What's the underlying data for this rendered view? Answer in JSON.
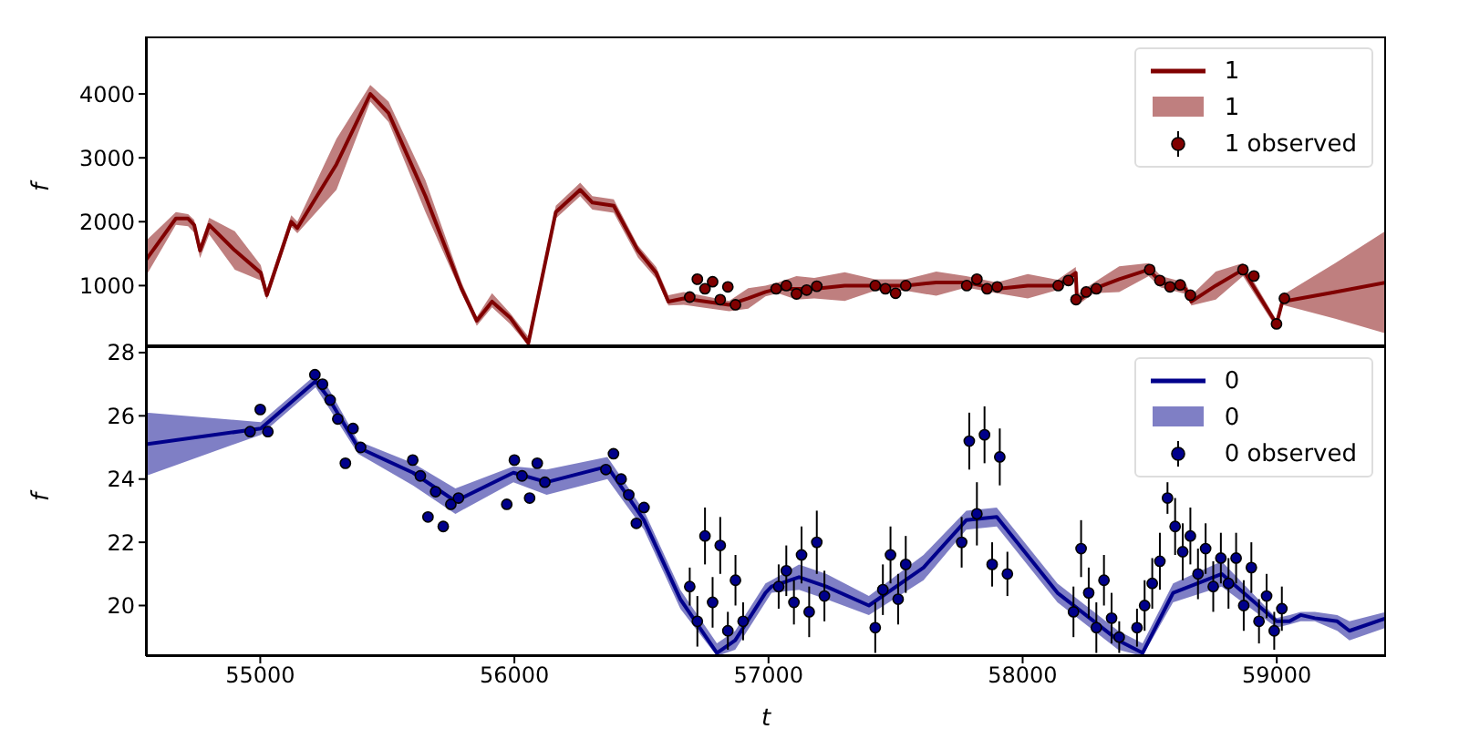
{
  "chart_data": [
    {
      "type": "line",
      "ylabel": "f",
      "xlim": [
        54550,
        59430
      ],
      "xticks": [
        55000,
        56000,
        57000,
        58000,
        59000
      ],
      "ylim": [
        50,
        4900
      ],
      "yticks": [
        1000,
        2000,
        3000,
        4000
      ],
      "tick_labels": "y",
      "legend": "top right",
      "series": [
        {
          "name": "1",
          "color": "#800000",
          "x": [
            54550,
            54668,
            54716,
            54740,
            54763,
            54799,
            54900,
            55002,
            55026,
            55122,
            55146,
            55300,
            55433,
            55505,
            55650,
            55792,
            55852,
            55912,
            55983,
            56055,
            56163,
            56259,
            56307,
            56391,
            56486,
            56558,
            56606,
            56666,
            56845,
            56920,
            56988,
            57037,
            57110,
            57180,
            57300,
            57419,
            57539,
            57660,
            57778,
            57898,
            58020,
            58137,
            58209,
            58214,
            58281,
            58380,
            58496,
            58544,
            58640,
            58664,
            58760,
            58867,
            58999,
            59022,
            59230,
            59430
          ],
          "values": [
            1400,
            2050,
            2050,
            1950,
            1550,
            1950,
            1550,
            1200,
            850,
            2000,
            1900,
            2900,
            4000,
            3700,
            2400,
            950,
            450,
            750,
            500,
            100,
            2150,
            2500,
            2300,
            2250,
            1550,
            1200,
            750,
            800,
            700,
            800,
            900,
            950,
            950,
            950,
            1000,
            1000,
            1000,
            1050,
            1050,
            950,
            1000,
            1000,
            1200,
            750,
            950,
            1100,
            1250,
            1050,
            950,
            750,
            1000,
            1250,
            400,
            750,
            900,
            1050
          ],
          "lower": [
            1150,
            1950,
            1930,
            1830,
            1430,
            1800,
            1250,
            1080,
            780,
            1920,
            1820,
            2500,
            3880,
            3560,
            2150,
            880,
            370,
            660,
            400,
            60,
            2050,
            2400,
            2190,
            2140,
            1440,
            1110,
            690,
            700,
            600,
            640,
            830,
            880,
            780,
            800,
            760,
            920,
            920,
            840,
            970,
            880,
            800,
            930,
            1110,
            690,
            880,
            900,
            1150,
            970,
            870,
            690,
            780,
            1150,
            330,
            700,
            480,
            250
          ],
          "upper": [
            1700,
            2150,
            2120,
            2030,
            1630,
            2060,
            1850,
            1320,
            950,
            2100,
            2000,
            3300,
            4140,
            3880,
            2650,
            1050,
            510,
            880,
            570,
            200,
            2250,
            2610,
            2400,
            2350,
            1630,
            1290,
            850,
            900,
            760,
            960,
            1000,
            1050,
            1150,
            1120,
            1210,
            1100,
            1100,
            1220,
            1150,
            1050,
            1180,
            1090,
            1290,
            860,
            1050,
            1300,
            1350,
            1150,
            1050,
            850,
            1220,
            1350,
            460,
            850,
            1350,
            1860
          ]
        },
        {
          "name": "1 observed",
          "type": "scatter",
          "color": "#800000",
          "marker": "circle",
          "x": [
            56690,
            56720,
            56750,
            56780,
            56810,
            56840,
            56870,
            57030,
            57070,
            57110,
            57150,
            57190,
            57420,
            57460,
            57500,
            57540,
            57780,
            57820,
            57860,
            57900,
            58140,
            58180,
            58210,
            58250,
            58290,
            58500,
            58540,
            58580,
            58620,
            58660,
            58867,
            58910,
            58999,
            59030
          ],
          "values": [
            820,
            1100,
            950,
            1060,
            780,
            980,
            700,
            950,
            1000,
            870,
            930,
            990,
            1000,
            950,
            880,
            1000,
            1000,
            1100,
            950,
            980,
            1000,
            1080,
            780,
            900,
            950,
            1250,
            1080,
            980,
            1010,
            850,
            1250,
            1150,
            400,
            800
          ]
        }
      ]
    },
    {
      "type": "line",
      "xlabel": "t",
      "ylabel": "f",
      "xlim": [
        54550,
        59430
      ],
      "xticks": [
        55000,
        56000,
        57000,
        58000,
        59000
      ],
      "ylim": [
        18.4,
        28.2
      ],
      "yticks": [
        20,
        22,
        24,
        26,
        28
      ],
      "legend": "top right",
      "series": [
        {
          "name": "0",
          "color": "#00008b",
          "x": [
            54550,
            55002,
            55218,
            55266,
            55385,
            55601,
            55768,
            55996,
            56127,
            56366,
            56510,
            56653,
            56797,
            56869,
            56988,
            57012,
            57120,
            57227,
            57395,
            57610,
            57778,
            57898,
            58137,
            58376,
            58472,
            58592,
            58783,
            58999,
            59050,
            59094,
            59150,
            59238,
            59286,
            59430
          ],
          "values": [
            25.1,
            25.6,
            27.1,
            26.6,
            25.0,
            24.2,
            23.3,
            24.2,
            23.9,
            24.4,
            22.7,
            20.2,
            18.5,
            18.9,
            20.4,
            20.6,
            20.9,
            20.6,
            20.0,
            21.2,
            22.7,
            22.8,
            20.4,
            18.9,
            18.5,
            20.4,
            21.0,
            19.5,
            19.5,
            19.7,
            19.6,
            19.5,
            19.2,
            19.6
          ],
          "lower": [
            24.1,
            25.4,
            26.9,
            26.3,
            24.8,
            23.8,
            22.9,
            23.9,
            23.5,
            24.0,
            22.4,
            19.9,
            18.4,
            18.6,
            20.1,
            20.4,
            20.5,
            20.2,
            19.7,
            20.8,
            22.4,
            22.5,
            20.1,
            18.6,
            18.4,
            20.1,
            20.6,
            19.3,
            19.4,
            19.5,
            19.5,
            19.2,
            18.9,
            19.3
          ],
          "upper": [
            26.1,
            25.8,
            27.3,
            26.9,
            25.2,
            24.5,
            23.7,
            24.4,
            24.3,
            24.7,
            23.0,
            20.5,
            18.8,
            19.2,
            20.7,
            20.8,
            21.3,
            21.0,
            20.3,
            21.6,
            23.0,
            23.1,
            20.7,
            19.2,
            18.8,
            20.7,
            21.4,
            19.6,
            19.7,
            19.8,
            19.8,
            19.7,
            19.5,
            19.8
          ]
        },
        {
          "name": "0 observed",
          "type": "scatter",
          "color": "#00008b",
          "marker": "circle",
          "x": [
            54960,
            55000,
            55030,
            55215,
            55245,
            55275,
            55305,
            55335,
            55365,
            55395,
            55600,
            55630,
            55660,
            55690,
            55720,
            55750,
            55780,
            55970,
            56000,
            56030,
            56060,
            56090,
            56120,
            56360,
            56390,
            56420,
            56450,
            56480,
            56510,
            56690,
            56720,
            56750,
            56780,
            56810,
            56840,
            56870,
            56900,
            57040,
            57070,
            57100,
            57130,
            57160,
            57190,
            57220,
            57420,
            57450,
            57480,
            57510,
            57540,
            57760,
            57790,
            57820,
            57850,
            57880,
            57910,
            57940,
            58200,
            58230,
            58260,
            58290,
            58320,
            58350,
            58380,
            58450,
            58480,
            58510,
            58540,
            58570,
            58600,
            58630,
            58660,
            58690,
            58720,
            58750,
            58780,
            58810,
            58840,
            58870,
            58900,
            58930,
            58960,
            58990,
            59020
          ],
          "values": [
            25.5,
            26.2,
            25.5,
            27.3,
            27.0,
            26.5,
            25.9,
            24.5,
            25.6,
            25.0,
            24.6,
            24.1,
            22.8,
            23.6,
            22.5,
            23.2,
            23.4,
            23.2,
            24.6,
            24.1,
            23.4,
            24.5,
            23.9,
            24.3,
            24.8,
            24.0,
            23.5,
            22.6,
            23.1,
            20.6,
            19.5,
            22.2,
            20.1,
            21.9,
            19.2,
            20.8,
            19.5,
            20.6,
            21.1,
            20.1,
            21.6,
            19.8,
            22.0,
            20.3,
            19.3,
            20.5,
            21.6,
            20.2,
            21.3,
            22.0,
            25.2,
            22.9,
            25.4,
            21.3,
            24.7,
            21.0,
            19.8,
            21.8,
            20.4,
            19.3,
            20.8,
            19.6,
            19.0,
            19.3,
            20.0,
            20.7,
            21.4,
            23.4,
            22.5,
            21.7,
            22.2,
            21.0,
            21.8,
            20.6,
            21.5,
            20.7,
            21.5,
            20.0,
            21.2,
            19.5,
            20.3,
            19.2,
            19.9
          ],
          "errors": [
            null,
            null,
            null,
            null,
            null,
            null,
            null,
            null,
            null,
            null,
            null,
            null,
            null,
            null,
            null,
            null,
            null,
            null,
            null,
            null,
            null,
            null,
            null,
            null,
            null,
            null,
            null,
            null,
            null,
            0.6,
            0.8,
            0.9,
            0.8,
            0.9,
            0.6,
            0.8,
            0.6,
            0.7,
            0.8,
            0.7,
            0.9,
            0.8,
            1.0,
            0.8,
            0.8,
            0.8,
            0.9,
            0.8,
            0.9,
            0.8,
            0.9,
            1.0,
            0.9,
            0.7,
            0.9,
            0.7,
            0.8,
            0.9,
            0.8,
            0.8,
            0.8,
            0.8,
            0.5,
            0.6,
            0.8,
            0.8,
            0.9,
            0.5,
            0.9,
            0.9,
            0.9,
            0.8,
            0.8,
            0.8,
            0.8,
            0.8,
            0.8,
            0.8,
            0.8,
            0.7,
            0.7,
            0.6,
            0.7
          ]
        }
      ]
    }
  ]
}
